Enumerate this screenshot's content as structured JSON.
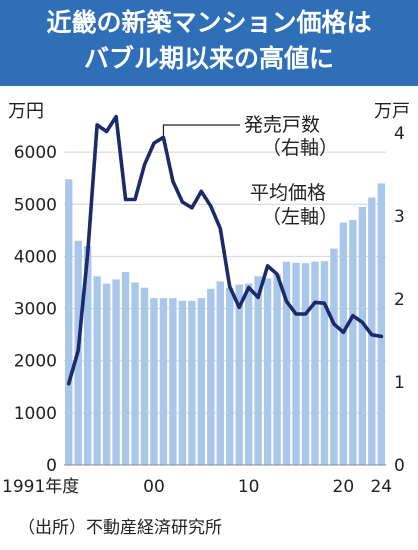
{
  "title": {
    "line1": "近畿の新築マンション価格は",
    "line2": "バブル期以来の高値に"
  },
  "source": "（出所）不動産経済研究所",
  "colors": {
    "title_bg": "#2f6fb8",
    "bar": "#a9c7ea",
    "line": "#1c2a6b",
    "text": "#222222"
  },
  "chart_data": {
    "type": "bar+line",
    "x": [
      1991,
      1992,
      1993,
      1994,
      1995,
      1996,
      1997,
      1998,
      1999,
      2000,
      2001,
      2002,
      2003,
      2004,
      2005,
      2006,
      2007,
      2008,
      2009,
      2010,
      2011,
      2012,
      2013,
      2014,
      2015,
      2016,
      2017,
      2018,
      2019,
      2020,
      2021,
      2022,
      2023,
      2024
    ],
    "x_tick_labels": [
      {
        "x": 1991,
        "label": "1991年度"
      },
      {
        "x": 2000,
        "label": "00"
      },
      {
        "x": 2010,
        "label": "10"
      },
      {
        "x": 2020,
        "label": "20"
      },
      {
        "x": 2024,
        "label": "24"
      }
    ],
    "left_axis": {
      "unit": "万円",
      "ylim": [
        0,
        7000
      ],
      "ticks": [
        0,
        1000,
        2000,
        3000,
        4000,
        5000,
        6000
      ]
    },
    "right_axis": {
      "unit": "万戸",
      "ylim": [
        0,
        4.4
      ],
      "ticks": [
        0,
        1,
        2,
        3,
        4
      ]
    },
    "series": [
      {
        "name": "平均価格",
        "axis": "left",
        "kind": "bar",
        "values": [
          5480,
          4300,
          4200,
          3620,
          3480,
          3560,
          3700,
          3500,
          3400,
          3200,
          3200,
          3200,
          3150,
          3150,
          3200,
          3380,
          3520,
          3400,
          3460,
          3480,
          3620,
          3580,
          3660,
          3900,
          3880,
          3870,
          3900,
          3910,
          4150,
          4650,
          4700,
          4950,
          5130,
          5400
        ]
      },
      {
        "name": "発売戸数",
        "axis": "right",
        "kind": "line",
        "values": [
          0.98,
          1.38,
          2.55,
          4.1,
          4.02,
          4.2,
          3.2,
          3.2,
          3.62,
          3.88,
          3.95,
          3.42,
          3.17,
          3.1,
          3.3,
          3.12,
          2.85,
          2.15,
          1.9,
          2.14,
          2.02,
          2.4,
          2.3,
          1.97,
          1.82,
          1.82,
          1.96,
          1.95,
          1.7,
          1.6,
          1.8,
          1.72,
          1.57,
          1.55
        ]
      }
    ],
    "annotations": {
      "units_line": "発売戸数",
      "units_line_axis": "（右軸）",
      "price": "平均価格",
      "price_axis": "（左軸）"
    },
    "grid": true
  }
}
